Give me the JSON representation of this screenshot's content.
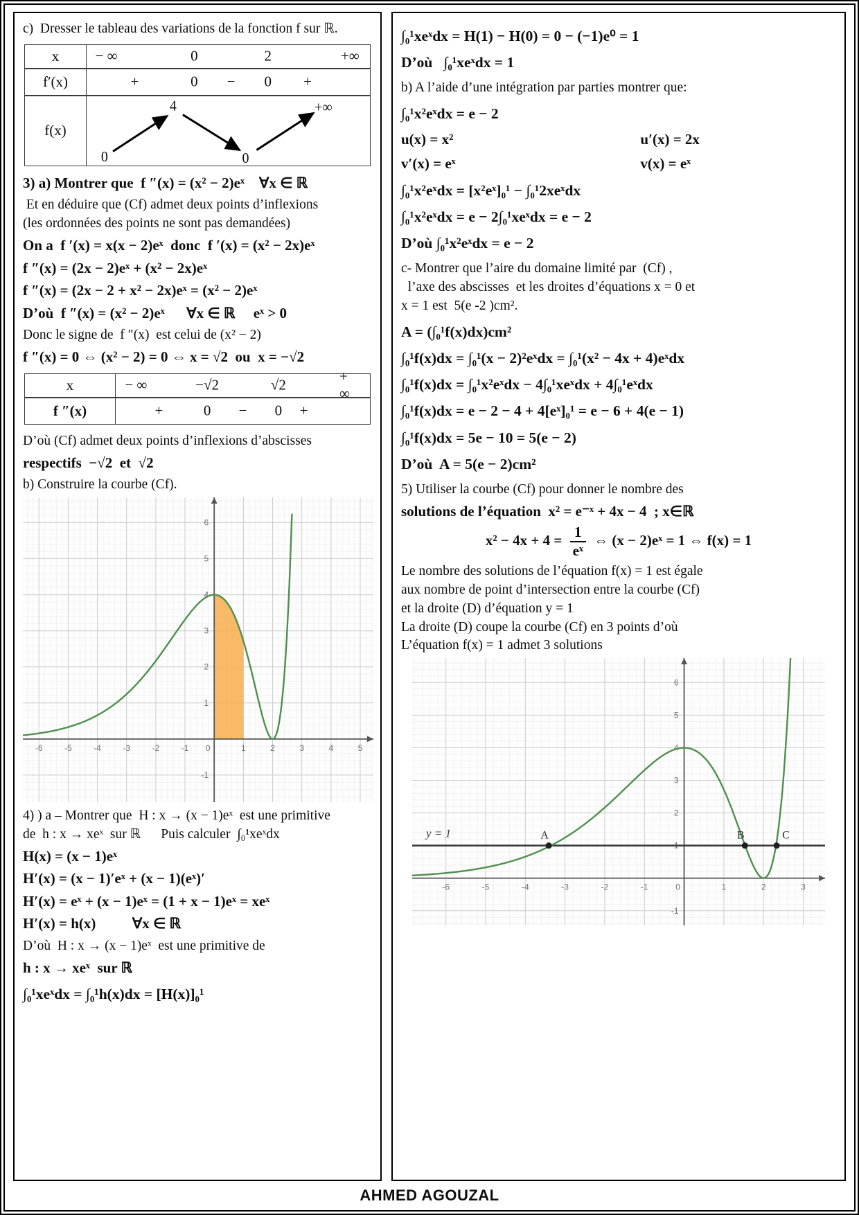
{
  "doc": {
    "footer": "AHMED AGOUZAL"
  },
  "left": {
    "c_line": "c)  Dresser le tableau des variations de la fonction f sur ℝ.",
    "table1": {
      "x_label": "x",
      "x_values": [
        {
          "t": "− ∞",
          "x": 7
        },
        {
          "t": "0",
          "x": 38
        },
        {
          "t": "2",
          "x": 64
        },
        {
          "t": "+∞",
          "x": 93
        }
      ],
      "fp_label": "f′(x)",
      "fp_values": [
        {
          "t": "+",
          "x": 17
        },
        {
          "t": "0",
          "x": 38
        },
        {
          "t": "−",
          "x": 51
        },
        {
          "t": "0",
          "x": 64
        },
        {
          "t": "+",
          "x": 78
        }
      ],
      "f_label": "f(x)",
      "f_start": "0",
      "f_peak": "4",
      "f_valley": "0",
      "f_end": "+∞"
    },
    "sec3": [
      {
        "t": "3) a) Montrer que  f ″(x) = (x² − 2)eˣ    ∀x ∈ ℝ",
        "c": "m"
      },
      {
        "t": " Et en déduire que (Cf) admet deux points d’inflexions",
        "c": "t"
      },
      {
        "t": "(les ordonnées des points ne sont pas demandées)",
        "c": "t"
      },
      {
        "t": "On a  f ′(x) = x(x − 2)eˣ  donc  f ′(x) = (x² − 2x)eˣ",
        "c": "m"
      },
      {
        "t": "f ″(x) = (2x − 2)eˣ + (x² − 2x)eˣ",
        "c": "m"
      },
      {
        "t": "f ″(x) = (2x − 2 + x² − 2x)eˣ = (x² − 2)eˣ",
        "c": "m"
      },
      {
        "t": "D’où  f ″(x) = (x² − 2)eˣ      ∀x ∈ ℝ     eˣ > 0",
        "c": "m"
      },
      {
        "t": "Donc le signe de  f ″(x)  est celui de (x² − 2)",
        "c": "t"
      },
      {
        "t": "f ″(x) = 0 ⇔ (x² − 2) = 0 ⇔ x = √2  ou  x = −√2",
        "c": "m"
      }
    ],
    "table2": {
      "x_label": "x",
      "x_values": [
        {
          "t": "− ∞",
          "x": 8
        },
        {
          "t": "−√2",
          "x": 36
        },
        {
          "t": "√2",
          "x": 64
        },
        {
          "t": "+ ∞",
          "x": 92
        }
      ],
      "fpp_label": "f ″(x)",
      "fpp_values": [
        {
          "t": "+",
          "x": 17
        },
        {
          "t": "0",
          "x": 36
        },
        {
          "t": "−",
          "x": 50
        },
        {
          "t": "0",
          "x": 64
        },
        {
          "t": "+",
          "x": 74
        }
      ]
    },
    "sec3b": [
      {
        "t": "D’où (Cf) admet deux points d’inflexions d’abscisses",
        "c": "t"
      },
      {
        "t": "respectifs  −√2  et  √2",
        "c": "m"
      },
      {
        "t": "b) Construire la courbe (Cf).",
        "c": "t"
      }
    ],
    "sec4": [
      {
        "t": "4) ) a – Montrer que  H : x → (x − 1)eˣ  est une primitive",
        "c": "t"
      },
      {
        "t": "de  h : x → xeˣ  sur ℝ      Puis calculer  ∫₀¹xeˣdx",
        "c": "t"
      },
      {
        "t": "H(x) = (x − 1)eˣ",
        "c": "m"
      },
      {
        "t": "H′(x) = (x − 1)′eˣ + (x − 1)(eˣ)′",
        "c": "m"
      },
      {
        "t": "H′(x) = eˣ + (x − 1)eˣ = (1 + x − 1)eˣ = xeˣ",
        "c": "m"
      },
      {
        "t": "H′(x) = h(x)          ∀x ∈ ℝ",
        "c": "m"
      },
      {
        "t": "D’où  H : x → (x − 1)eˣ  est une primitive de",
        "c": "t"
      },
      {
        "t": "h : x → xeˣ  sur ℝ",
        "c": "m"
      },
      {
        "t": "∫₀¹xeˣdx = ∫₀¹h(x)dx = [H(x)]₀¹",
        "c": "mi"
      }
    ]
  },
  "right": {
    "secA": [
      {
        "t": "∫₀¹xeˣdx = H(1) − H(0) = 0 − (−1)e⁰ = 1",
        "c": "mi"
      },
      {
        "t": "D’où   ∫₀¹xeˣdx = 1",
        "c": "mi"
      },
      {
        "t": "b) A l’aide d’une intégration par parties montrer que:",
        "c": "t"
      },
      {
        "t": "∫₀¹x²eˣdx = e − 2",
        "c": "mi"
      },
      {
        "l": "u(x) = x²",
        "r": "u′(x) = 2x",
        "c": "pair"
      },
      {
        "l": "v′(x) = eˣ",
        "r": "v(x) = eˣ",
        "c": "pair"
      },
      {
        "t": "∫₀¹x²eˣdx = [x²eˣ]₀¹ − ∫₀¹2xeˣdx",
        "c": "mi"
      },
      {
        "t": "∫₀¹x²eˣdx = e − 2∫₀¹xeˣdx = e − 2",
        "c": "mi"
      },
      {
        "t": "D’où ∫₀¹x²eˣdx = e − 2",
        "c": "mi"
      },
      {
        "t": "c- Montrer que l’aire du domaine limité par  (Cf) ,",
        "c": "t"
      },
      {
        "t": "  l’axe des abscisses  et les droites d’équations x = 0 et",
        "c": "t"
      },
      {
        "t": "x = 1 est  5(e -2 )cm².",
        "c": "t"
      },
      {
        "t": "A = (∫₀¹f(x)dx)cm²",
        "c": "mi"
      },
      {
        "t": "∫₀¹f(x)dx = ∫₀¹(x − 2)²eˣdx = ∫₀¹(x² − 4x + 4)eˣdx",
        "c": "mi"
      },
      {
        "t": "∫₀¹f(x)dx = ∫₀¹x²eˣdx − 4∫₀¹xeˣdx + 4∫₀¹eˣdx",
        "c": "mi"
      },
      {
        "t": "∫₀¹f(x)dx = e − 2 − 4 + 4[eˣ]₀¹ = e − 6 + 4(e − 1)",
        "c": "mi"
      },
      {
        "t": "∫₀¹f(x)dx = 5e − 10 = 5(e − 2)",
        "c": "mi"
      },
      {
        "t": "D’où  A = 5(e − 2)cm²",
        "c": "mi"
      },
      {
        "t": "5) Utiliser la courbe (Cf) pour donner le nombre des",
        "c": "t"
      },
      {
        "t": "solutions de l’équation  x² = e⁻ˣ + 4x − 4  ; x∈ℝ",
        "c": "m"
      },
      {
        "t1": "x² − 4x + 4 = ",
        "num": "1",
        "den": "eˣ",
        "t2": " ⇔ (x − 2)eˣ = 1 ⇔ f(x) = 1",
        "c": "m ctr"
      },
      {
        "t": "Le nombre des solutions de l’équation f(x) = 1 est égale",
        "c": "t"
      },
      {
        "t": "aux nombre de point d’intersection entre la courbe (Cf)",
        "c": "t"
      },
      {
        "t": "et la droite (D) d’équation y = 1",
        "c": "t"
      },
      {
        "t": "La droite (D) coupe la courbe (Cf) en 3 points d’où",
        "c": "t"
      },
      {
        "t": "L’équation f(x) = 1 admet 3 solutions",
        "c": "t"
      }
    ]
  },
  "chart_data": [
    {
      "type": "line",
      "name": "courbe-cf-avec-aire",
      "function": "f(x) = (x − 2)² eˣ",
      "x_range": [
        -6.55,
        5.45
      ],
      "y_range": [
        -1.75,
        6.7
      ],
      "x_ticks": [
        -6,
        -5,
        -4,
        -3,
        -2,
        -1,
        0,
        1,
        2,
        3,
        4,
        5
      ],
      "y_ticks": [
        -1,
        1,
        2,
        3,
        4,
        5,
        6
      ],
      "grid": true,
      "curve_color": "#4e8f4e",
      "shaded_region": {
        "from": 0,
        "to": 1,
        "color": "#f8ae4d",
        "opacity": 0.85
      },
      "key_points": [
        {
          "x": 0,
          "y": 4
        },
        {
          "x": 2,
          "y": 0
        }
      ]
    },
    {
      "type": "line",
      "name": "courbe-cf-et-droite",
      "function": "f(x) = (x − 2)² eˣ",
      "x_range": [
        -6.85,
        3.55
      ],
      "y_range": [
        -1.45,
        6.75
      ],
      "x_ticks": [
        -6,
        -5,
        -4,
        -3,
        -2,
        -1,
        0,
        1,
        2,
        3
      ],
      "y_ticks": [
        -1,
        1,
        2,
        3,
        4,
        5,
        6
      ],
      "grid": true,
      "curve_color": "#4e8f4e",
      "hline": {
        "y": 1,
        "label": "y = 1",
        "color": "#3a3a3a"
      },
      "points": [
        {
          "label": "A",
          "x": -3.41,
          "y": 1
        },
        {
          "label": "B",
          "x": 1.53,
          "y": 1
        },
        {
          "label": "C",
          "x": 2.33,
          "y": 1
        }
      ]
    }
  ]
}
